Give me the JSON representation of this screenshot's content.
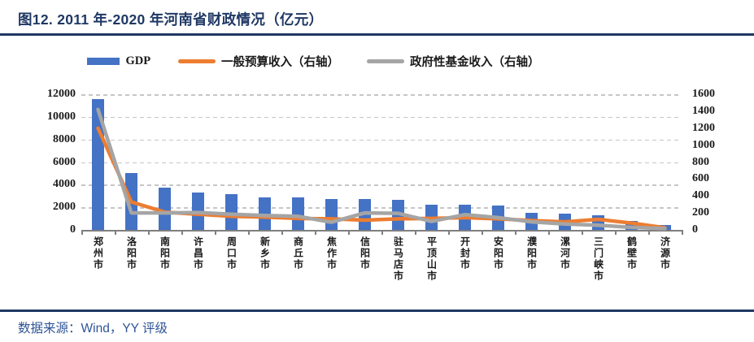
{
  "header": {
    "title": "图12. 2011 年-2020 年河南省财政情况（亿元）"
  },
  "footer": {
    "source": "数据来源：Wind，YY 评级"
  },
  "colors": {
    "accent_navy": "#1F3864",
    "source_blue": "#2F5597",
    "bar_blue": "#4472C4",
    "line_orange": "#ED7D31",
    "line_gray": "#A5A5A5",
    "axis_gray": "#7f7f7f",
    "grid_gray": "#c6c6c6"
  },
  "chart_data": {
    "type": "bar",
    "subtype": "combo-bar-line-dual-axis",
    "title": "2011 年-2020 年河南省财政情况（亿元）",
    "grid": "horizontal-dashed",
    "legend_position": "top",
    "categories": [
      "郑州市",
      "洛阳市",
      "南阳市",
      "许昌市",
      "周口市",
      "新乡市",
      "商丘市",
      "焦作市",
      "信阳市",
      "驻马店市",
      "平顶山市",
      "开封市",
      "安阳市",
      "濮阳市",
      "漯河市",
      "三门峡市",
      "鹤壁市",
      "济源市"
    ],
    "series": [
      {
        "name": "GDP",
        "type": "bar",
        "axis": "left",
        "color": "#4472C4",
        "values": [
          11600,
          5050,
          3750,
          3300,
          3150,
          2850,
          2850,
          2700,
          2750,
          2650,
          2250,
          2250,
          2150,
          1500,
          1450,
          1275,
          825,
          450
        ]
      },
      {
        "name": "一般预算收入（右轴）",
        "type": "line",
        "axis": "right",
        "color": "#ED7D31",
        "values": [
          1200,
          330,
          210,
          185,
          160,
          150,
          135,
          130,
          115,
          130,
          135,
          145,
          130,
          110,
          95,
          125,
          80,
          25
        ]
      },
      {
        "name": "政府性基金收入（右轴）",
        "type": "line",
        "axis": "right",
        "color": "#A5A5A5",
        "values": [
          1420,
          200,
          200,
          205,
          185,
          170,
          160,
          90,
          200,
          195,
          100,
          180,
          145,
          95,
          70,
          55,
          30,
          15
        ]
      }
    ],
    "left_axis": {
      "min": 0,
      "max": 12000,
      "step": 2000,
      "ticks": [
        0,
        2000,
        4000,
        6000,
        8000,
        10000,
        12000
      ]
    },
    "right_axis": {
      "min": 0,
      "max": 1600,
      "step": 200,
      "ticks": [
        0,
        200,
        400,
        600,
        800,
        1000,
        1200,
        1400,
        1600
      ]
    }
  }
}
